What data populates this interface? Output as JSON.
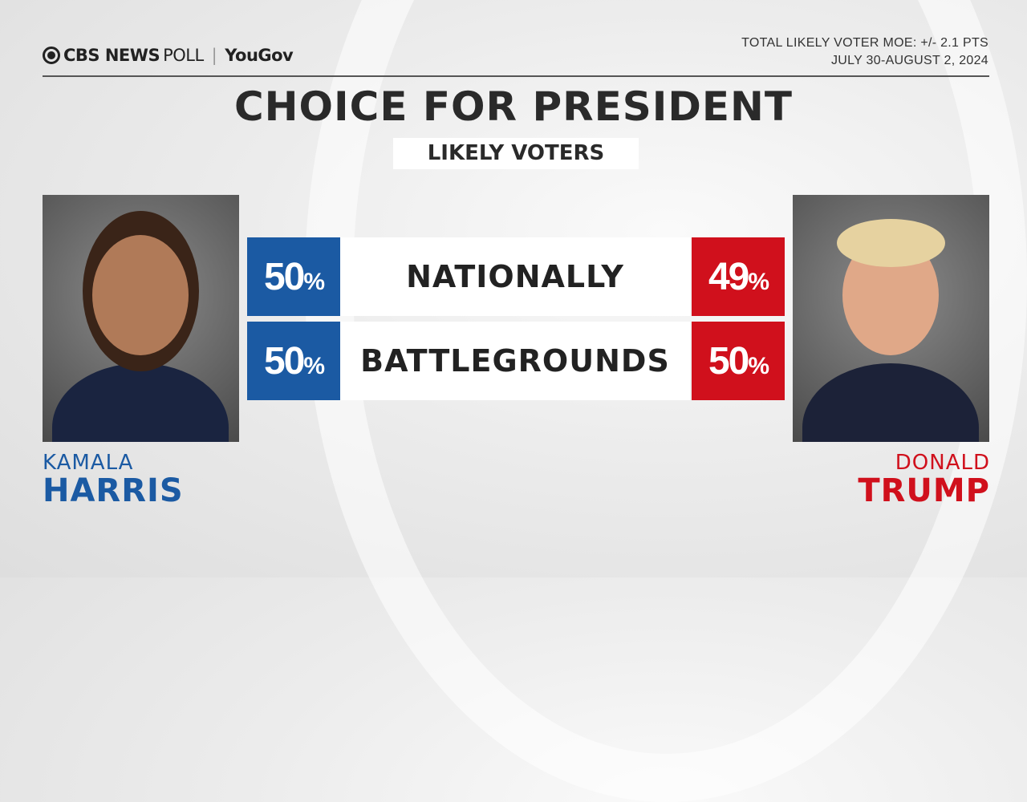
{
  "header": {
    "brand": "CBS NEWS",
    "poll": "POLL",
    "partner": "YouGov",
    "moe": "TOTAL LIKELY VOTER MOE: +/- 2.1 PTS",
    "dates": "JULY 30-AUGUST 2, 2024"
  },
  "title": "CHOICE FOR PRESIDENT",
  "subtitle": "LIKELY VOTERS",
  "colors": {
    "democrat": "#1b5aa3",
    "republican": "#d0101c"
  },
  "candidates": {
    "left": {
      "first": "KAMALA",
      "last": "HARRIS"
    },
    "right": {
      "first": "DONALD",
      "last": "TRUMP"
    }
  },
  "rows": [
    {
      "label": "NATIONALLY",
      "harris": "50",
      "trump": "49"
    },
    {
      "label": "BATTLEGROUNDS",
      "harris": "50",
      "trump": "50"
    }
  ],
  "pct_sign": "%",
  "chart_data": {
    "type": "table",
    "title": "CHOICE FOR PRESIDENT",
    "subtitle": "LIKELY VOTERS",
    "columns": [
      "HARRIS",
      "",
      "TRUMP"
    ],
    "rows": [
      {
        "label": "NATIONALLY",
        "values": [
          50,
          49
        ]
      },
      {
        "label": "BATTLEGROUNDS",
        "values": [
          50,
          50
        ]
      }
    ],
    "unit": "%"
  }
}
